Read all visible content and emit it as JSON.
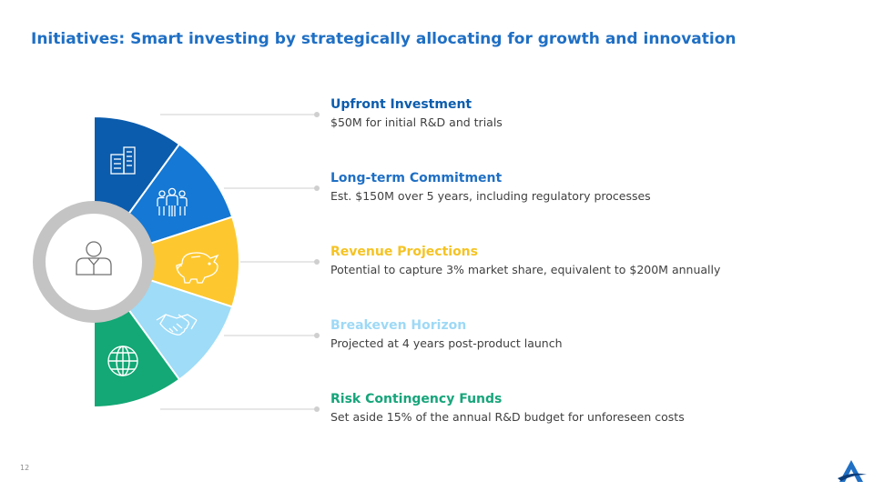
{
  "slide": {
    "title": "Initiatives: Smart investing by strategically allocating for growth and innovation",
    "page_number": "12"
  },
  "items": [
    {
      "title": "Upfront Investment",
      "description": "$50M for initial R&D and trials",
      "color": "#0b5cad",
      "icon": "buildings-icon"
    },
    {
      "title": "Long-term Commitment",
      "description": "Est. $150M over 5 years, including regulatory processes",
      "color": "#1f6fc4",
      "icon": "team-icon"
    },
    {
      "title": "Revenue Projections",
      "description": "Potential to capture 3% market share, equivalent to $200M annually",
      "color": "#f5c324",
      "icon": "piggy-bank-icon"
    },
    {
      "title": "Breakeven Horizon",
      "description": "Projected at 4 years post-product launch",
      "color": "#9ed9f6",
      "icon": "handshake-icon"
    },
    {
      "title": "Risk Contingency Funds",
      "description": "Set aside 15% of the annual R&D budget for unforeseen costs",
      "color": "#17a57a",
      "icon": "globe-icon"
    }
  ],
  "segment_colors": [
    "#0b5cad",
    "#1478d4",
    "#fdc82f",
    "#9edcf8",
    "#13a875"
  ],
  "center_icon": "person-icon"
}
